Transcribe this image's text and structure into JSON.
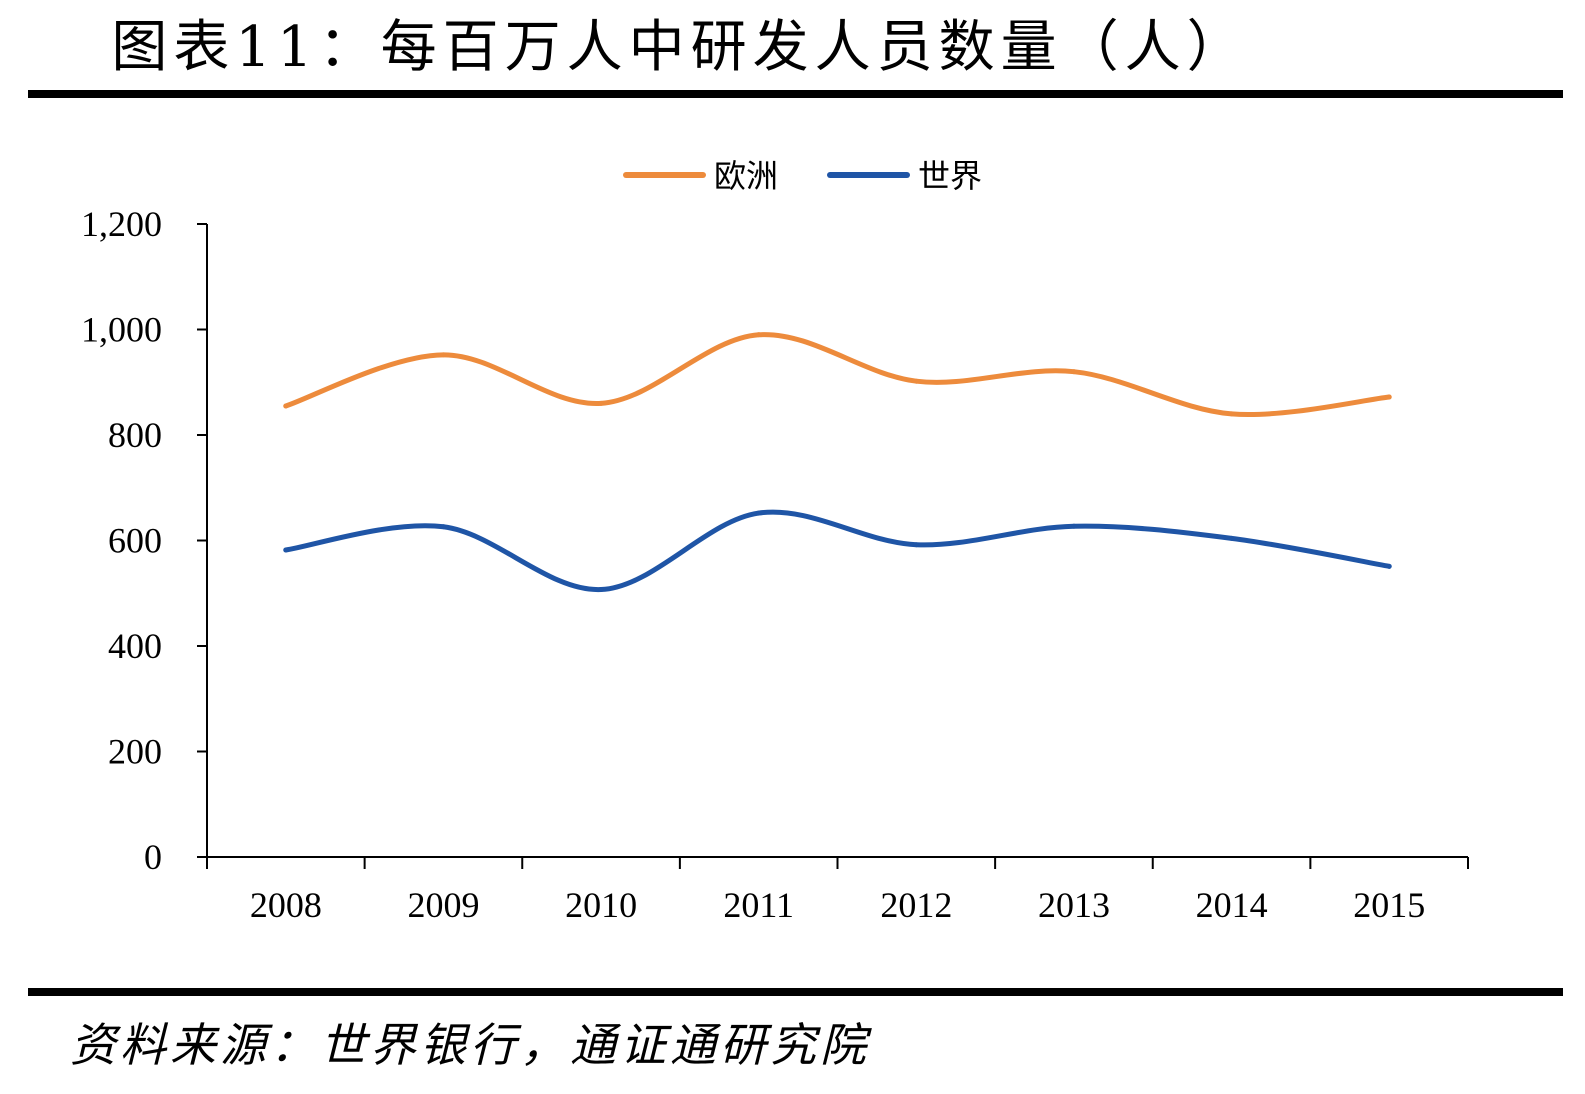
{
  "title": "图表11：每百万人中研发人员数量（人）",
  "source": "资料来源：世界银行，通证通研究院",
  "chart_data": {
    "type": "line",
    "x": [
      "2008",
      "2009",
      "2010",
      "2011",
      "2012",
      "2013",
      "2014",
      "2015"
    ],
    "series": [
      {
        "name": "欧洲",
        "color": "#ED8B3C",
        "values": [
          855,
          952,
          860,
          990,
          902,
          920,
          840,
          872
        ]
      },
      {
        "name": "世界",
        "color": "#1F55A6",
        "values": [
          582,
          626,
          507,
          652,
          592,
          627,
          604,
          551
        ]
      }
    ],
    "ylim": [
      0,
      1200
    ],
    "yticks": [
      0,
      200,
      400,
      600,
      800,
      1000,
      1200
    ],
    "ytick_labels": [
      "0",
      "200",
      "400",
      "600",
      "800",
      "1,000",
      "1,200"
    ],
    "xlabel": "",
    "ylabel": "",
    "smooth": true,
    "grid": false,
    "legend_position": "top-center"
  }
}
